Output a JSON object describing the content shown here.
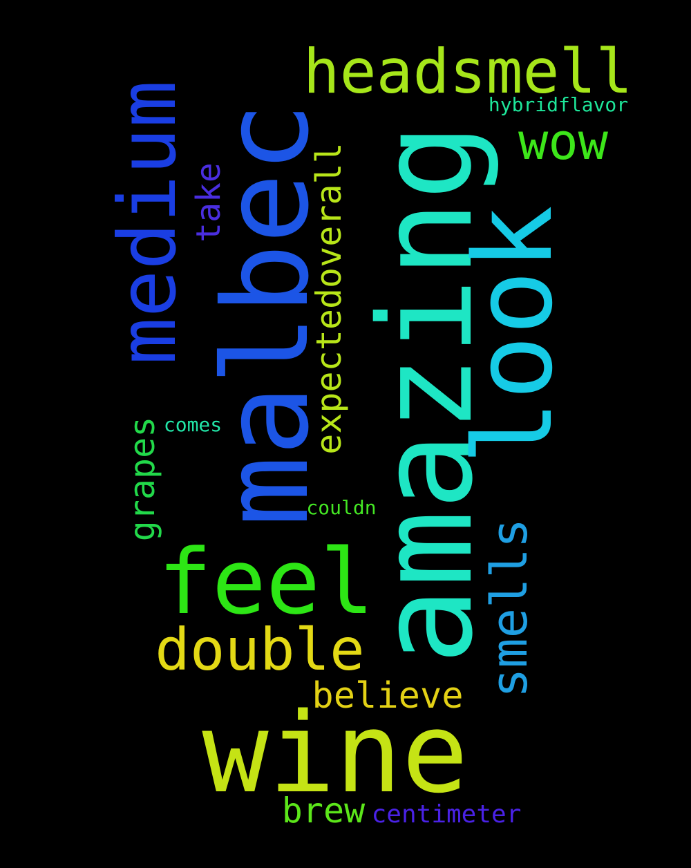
{
  "words": {
    "wine": {
      "text": "wine",
      "color": "#c5e315"
    },
    "amazing": {
      "text": "amazing",
      "color": "#1ee6c4"
    },
    "malbec": {
      "text": "malbec",
      "color": "#1c55e6"
    },
    "look": {
      "text": "look",
      "color": "#16cbe6"
    },
    "feel": {
      "text": "feel",
      "color": "#2de615"
    },
    "medium": {
      "text": "medium",
      "color": "#1a3ee3"
    },
    "headsmell": {
      "text": "headsmell",
      "color": "#a6e61a"
    },
    "double": {
      "text": "double",
      "color": "#e3d915"
    },
    "smells": {
      "text": "smells",
      "color": "#1f9fe3"
    },
    "wow": {
      "text": "wow",
      "color": "#3de61a"
    },
    "expectedoverall": {
      "text": "expectedoverall",
      "color": "#b8e619"
    },
    "believe": {
      "text": "believe",
      "color": "#e3d115"
    },
    "brew": {
      "text": "brew",
      "color": "#5ce61a"
    },
    "grapes": {
      "text": "grapes",
      "color": "#22d94a"
    },
    "take": {
      "text": "take",
      "color": "#4a2ee0"
    },
    "centimeter": {
      "text": "centimeter",
      "color": "#4a22e6"
    },
    "hybridflavor": {
      "text": "hybridflavor",
      "color": "#1ee69a"
    },
    "comes": {
      "text": "comes",
      "color": "#22e6a8"
    },
    "couldn": {
      "text": "couldn",
      "color": "#44e624"
    }
  }
}
